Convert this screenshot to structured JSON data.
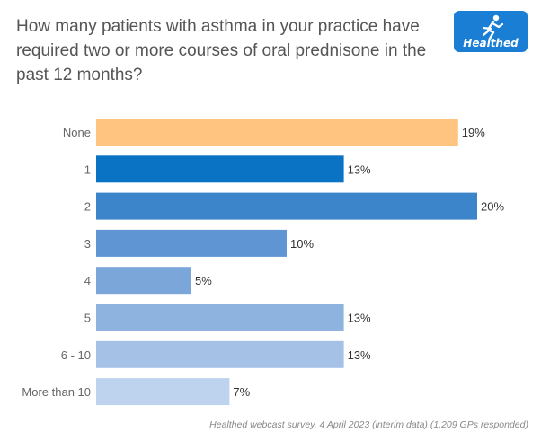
{
  "title": "How many patients with asthma in your practice have required two or more courses of oral prednisone in the past 12 months?",
  "logo": {
    "text": "Healthed",
    "icon": "running-figure-icon",
    "color": "#1a7fd4"
  },
  "footnote": "Healthed webcast survey, 4 April 2023 (interim data) (1,209 GPs responded)",
  "chart_data": {
    "type": "bar",
    "orientation": "horizontal",
    "title": "How many patients with asthma in your practice have required two or more courses of oral prednisone in the past 12 months?",
    "categories": [
      "None",
      "1",
      "2",
      "3",
      "4",
      "5",
      "6 - 10",
      "More than 10"
    ],
    "values": [
      19,
      13,
      20,
      10,
      5,
      13,
      13,
      7
    ],
    "labels": [
      "19%",
      "13%",
      "20%",
      "10%",
      "5%",
      "13%",
      "13%",
      "7%"
    ],
    "colors": [
      "#ffc47f",
      "#0a73c4",
      "#3d85cb",
      "#5e95d2",
      "#7aa6da",
      "#8eb3df",
      "#a5c2e6",
      "#bed3ee"
    ],
    "unit": "%",
    "xlim": [
      0,
      20
    ],
    "grid": false,
    "legend": "none"
  }
}
